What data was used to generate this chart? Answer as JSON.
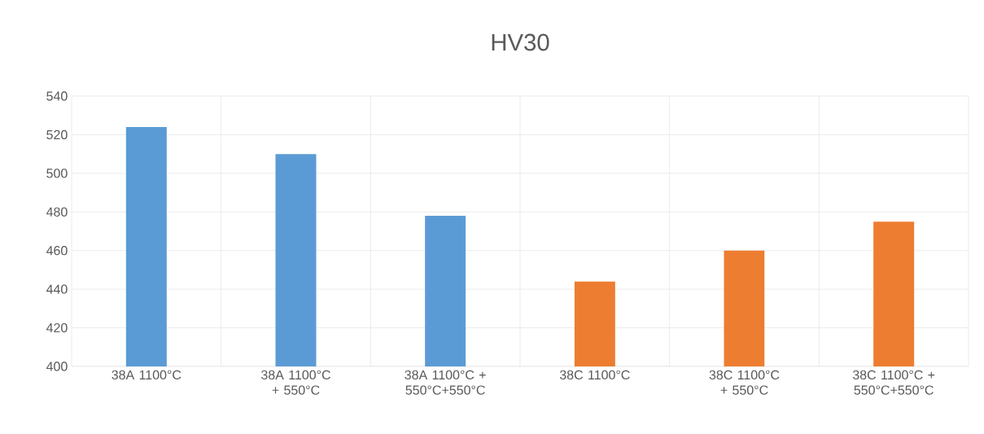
{
  "chart_data": {
    "type": "bar",
    "title": "HV30",
    "categories": [
      "38A 1100°C",
      "38A 1100°C + 550°C",
      "38A 1100°C + 550°C+550°C",
      "38C 1100°C",
      "38C 1100°C + 550°C",
      "38C 1100°C + 550°C+550°C"
    ],
    "values": [
      524,
      510,
      478,
      444,
      460,
      475
    ],
    "colors": [
      "#5b9bd5",
      "#5b9bd5",
      "#5b9bd5",
      "#ed7d31",
      "#ed7d31",
      "#ed7d31"
    ],
    "ylim": [
      400,
      540
    ],
    "yticks": [
      400,
      420,
      440,
      460,
      480,
      500,
      520,
      540
    ],
    "grid": true
  }
}
